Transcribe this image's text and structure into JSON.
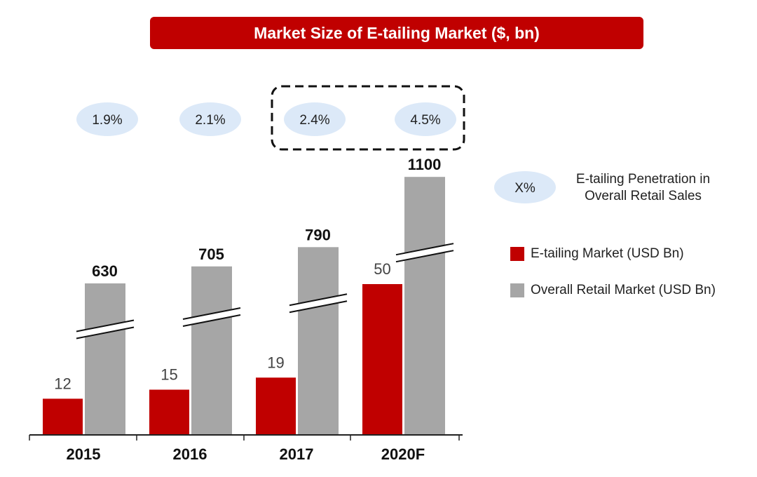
{
  "chart_data": {
    "type": "bar",
    "title": "Market Size of E-tailing Market ($, bn)",
    "categories": [
      "2015",
      "2016",
      "2017",
      "2020F"
    ],
    "series": [
      {
        "name": "E-tailing Market (USD Bn)",
        "values": [
          12,
          15,
          19,
          50
        ],
        "color": "#c00000"
      },
      {
        "name": "Overall Retail Market (USD Bn)",
        "values": [
          630,
          705,
          790,
          1100
        ],
        "color": "#a6a6a6",
        "axis_break": true
      }
    ],
    "penetration": {
      "values": [
        "1.9%",
        "2.1%",
        "2.4%",
        "4.5%"
      ],
      "highlighted": [
        "2.4%",
        "4.5%"
      ],
      "color": "#dce9f8"
    },
    "legend": {
      "bubble_label": "X%",
      "bubble_text_line1": "E-tailing Penetration in",
      "bubble_text_line2": "Overall Retail Sales",
      "placement": "right"
    },
    "grid": false
  }
}
